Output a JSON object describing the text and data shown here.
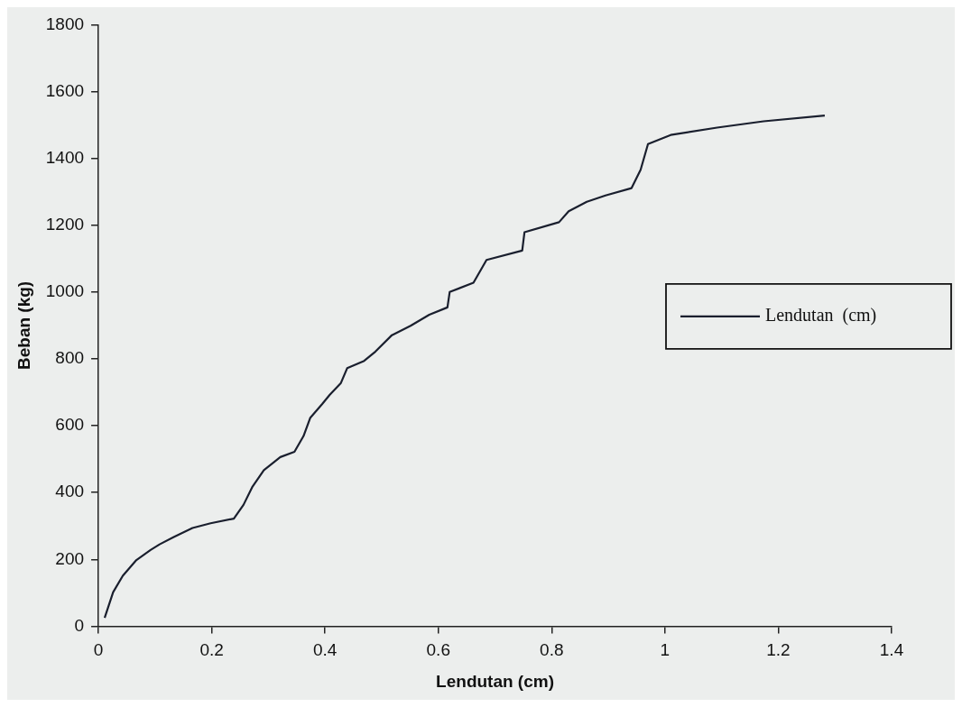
{
  "chart_data": {
    "type": "line",
    "xlabel": "Lendutan (cm)",
    "ylabel": "Beban (kg)",
    "xlim": [
      0,
      1.4
    ],
    "xticks": [
      0,
      0.2,
      0.4,
      0.6,
      0.8,
      1,
      1.2,
      1.4
    ],
    "ylim": [
      0,
      1800
    ],
    "yticks": [
      0,
      200,
      400,
      600,
      800,
      1000,
      1200,
      1400,
      1600,
      1800
    ],
    "grid": false,
    "legend": "right",
    "marker": "none",
    "line_style": "solid",
    "series": [
      {
        "name": "Lendutan  (cm)",
        "color": "#1a1f2e",
        "x": [
          0.011,
          0.026,
          0.043,
          0.067,
          0.092,
          0.108,
          0.133,
          0.166,
          0.198,
          0.239,
          0.256,
          0.272,
          0.292,
          0.321,
          0.346,
          0.362,
          0.374,
          0.395,
          0.408,
          0.428,
          0.439,
          0.469,
          0.489,
          0.518,
          0.551,
          0.584,
          0.616,
          0.62,
          0.662,
          0.685,
          0.748,
          0.752,
          0.813,
          0.83,
          0.862,
          0.895,
          0.941,
          0.957,
          0.97,
          1.01,
          1.092,
          1.174,
          1.282
        ],
        "values": [
          25,
          102,
          151,
          198,
          228,
          245,
          267,
          294,
          308,
          322,
          363,
          418,
          467,
          506,
          522,
          569,
          624,
          665,
          692,
          728,
          772,
          794,
          822,
          871,
          899,
          932,
          954,
          1000,
          1028,
          1096,
          1124,
          1179,
          1209,
          1242,
          1270,
          1289,
          1311,
          1366,
          1443,
          1470,
          1492,
          1511,
          1528
        ]
      }
    ]
  }
}
